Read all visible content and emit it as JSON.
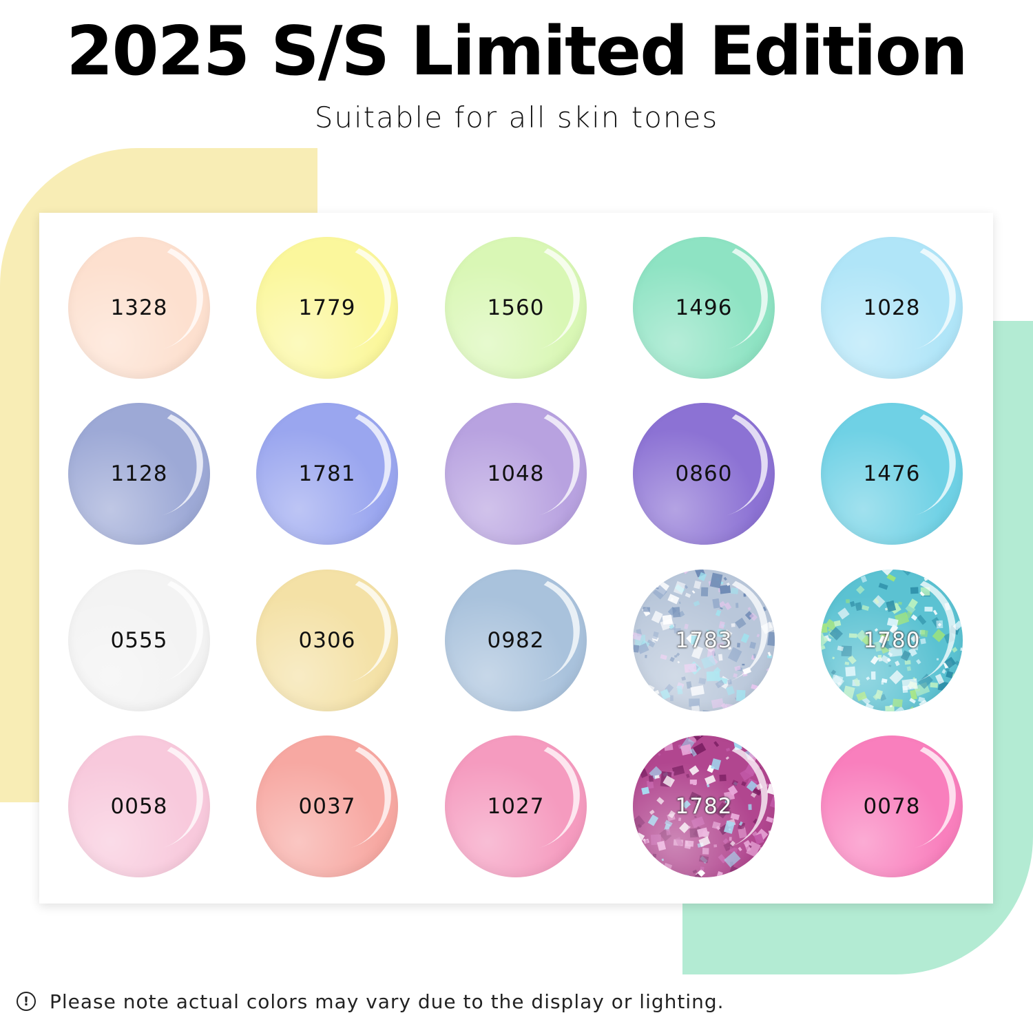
{
  "header": {
    "title": "2025 S/S Limited Edition",
    "subtitle": "Suitable for all skin tones"
  },
  "colors": {
    "accent_yellow": "#f8edb5",
    "accent_green": "#b3ebd3"
  },
  "swatches": [
    {
      "code": "1328",
      "color": "#fde0cf",
      "finish": "solid"
    },
    {
      "code": "1779",
      "color": "#fbf79c",
      "finish": "solid"
    },
    {
      "code": "1560",
      "color": "#d9f7b5",
      "finish": "solid"
    },
    {
      "code": "1496",
      "color": "#8ee3c3",
      "finish": "solid"
    },
    {
      "code": "1028",
      "color": "#b0e5f8",
      "finish": "solid"
    },
    {
      "code": "1128",
      "color": "#9da9d6",
      "finish": "solid"
    },
    {
      "code": "1781",
      "color": "#9aa6ef",
      "finish": "solid"
    },
    {
      "code": "1048",
      "color": "#b8a2e0",
      "finish": "solid"
    },
    {
      "code": "0860",
      "color": "#8c72d4",
      "finish": "solid"
    },
    {
      "code": "1476",
      "color": "#6fd1e5",
      "finish": "solid"
    },
    {
      "code": "0555",
      "color": "#f3f3f3",
      "finish": "solid"
    },
    {
      "code": "0306",
      "color": "#f4e1a6",
      "finish": "solid"
    },
    {
      "code": "0982",
      "color": "#a9c2dc",
      "finish": "solid"
    },
    {
      "code": "1783",
      "color": "#b9c7da",
      "finish": "glitter"
    },
    {
      "code": "1780",
      "color": "#5bc2d2",
      "finish": "glitter"
    },
    {
      "code": "0058",
      "color": "#f8c9dc",
      "finish": "solid"
    },
    {
      "code": "0037",
      "color": "#f7a8a2",
      "finish": "solid"
    },
    {
      "code": "1027",
      "color": "#f59bbf",
      "finish": "solid"
    },
    {
      "code": "1782",
      "color": "#b1468f",
      "finish": "glitter"
    },
    {
      "code": "0078",
      "color": "#f97fbd",
      "finish": "solid"
    }
  ],
  "footer": {
    "note": "Please note actual colors may vary due to the display or lighting.",
    "icon": "info-icon"
  }
}
